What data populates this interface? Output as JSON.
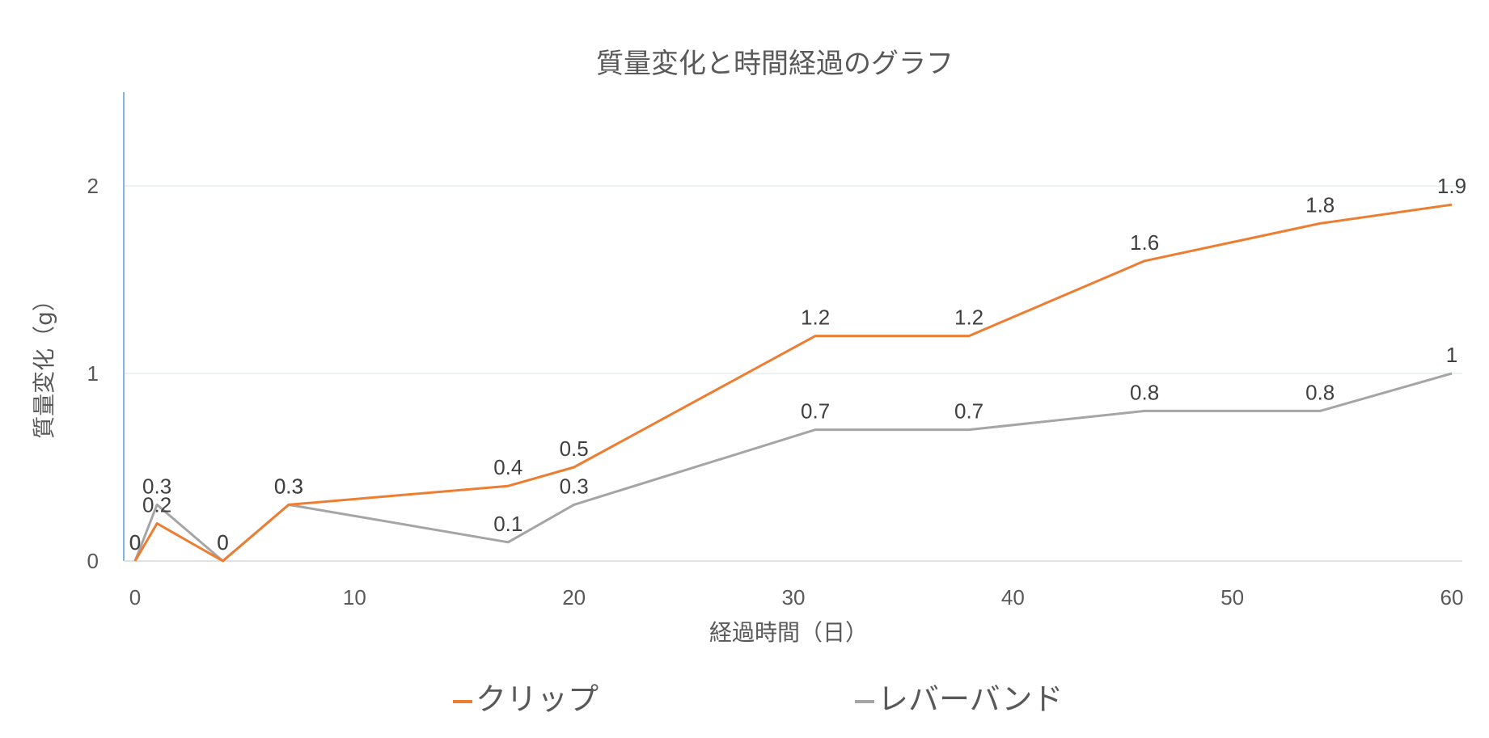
{
  "chart_data": {
    "type": "line",
    "title": "質量変化と時間経過のグラフ",
    "xlabel": "経過時間（日）",
    "ylabel": "質量変化（g）",
    "xlim": [
      0,
      60
    ],
    "ylim": [
      0,
      2.5
    ],
    "xticks": [
      0,
      10,
      20,
      30,
      40,
      50,
      60
    ],
    "yticks": [
      0,
      1,
      2
    ],
    "grid": true,
    "legend_position": "bottom",
    "series": [
      {
        "name": "クリップ",
        "color": "#ed7d31",
        "points": [
          [
            0,
            0
          ],
          [
            1,
            0.2
          ],
          [
            4,
            0
          ],
          [
            7,
            0.3
          ],
          [
            17,
            0.4
          ],
          [
            20,
            0.5
          ],
          [
            31,
            1.2
          ],
          [
            38,
            1.2
          ],
          [
            46,
            1.6
          ],
          [
            54,
            1.8
          ],
          [
            60,
            1.9
          ]
        ],
        "labels": [
          "0",
          "0.2",
          "0",
          "0.3",
          "0.4",
          "0.5",
          "1.2",
          "1.2",
          "1.6",
          "1.8",
          "1.9"
        ]
      },
      {
        "name": "レバーバンド",
        "color": "#a5a5a5",
        "points": [
          [
            0,
            0
          ],
          [
            1,
            0.3
          ],
          [
            4,
            0
          ],
          [
            7,
            0.3
          ],
          [
            17,
            0.1
          ],
          [
            20,
            0.3
          ],
          [
            31,
            0.7
          ],
          [
            38,
            0.7
          ],
          [
            46,
            0.8
          ],
          [
            54,
            0.8
          ],
          [
            60,
            1
          ]
        ],
        "labels": [
          "0",
          "0.3",
          "0",
          "0.3",
          "0.1",
          "0.3",
          "0.7",
          "0.7",
          "0.8",
          "0.8",
          "1"
        ]
      }
    ]
  }
}
